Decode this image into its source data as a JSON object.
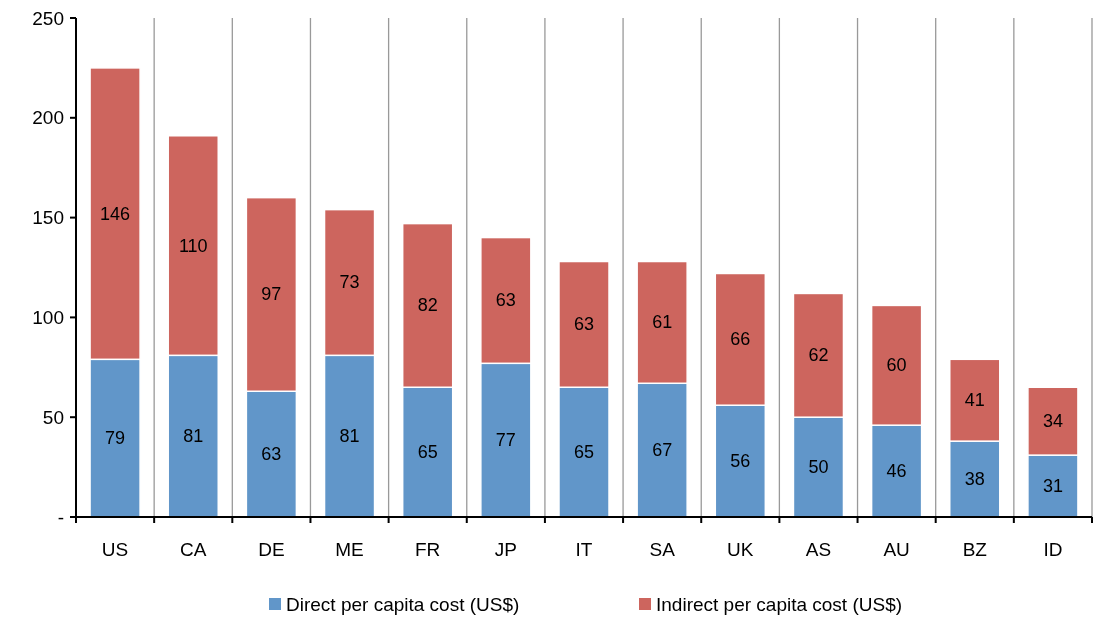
{
  "chart_data": {
    "type": "bar",
    "stacked": true,
    "data_labels": true,
    "grid": "x",
    "legend": "bottom",
    "categories": [
      "US",
      "CA",
      "DE",
      "ME",
      "FR",
      "JP",
      "IT",
      "SA",
      "UK",
      "AS",
      "AU",
      "BZ",
      "ID"
    ],
    "series": [
      {
        "name": "Direct per capita cost (US$)",
        "color": "#6196c9",
        "values": [
          79,
          81,
          63,
          81,
          65,
          77,
          65,
          67,
          56,
          50,
          46,
          38,
          31
        ]
      },
      {
        "name": "Indirect per capita cost (US$)",
        "color": "#cd655e",
        "values": [
          146,
          110,
          97,
          73,
          82,
          63,
          63,
          61,
          66,
          62,
          60,
          41,
          34
        ]
      }
    ],
    "ylim": [
      0,
      250
    ],
    "yticks": [
      {
        "value": 0,
        "label": "-"
      },
      50,
      100,
      150,
      200,
      250
    ]
  }
}
